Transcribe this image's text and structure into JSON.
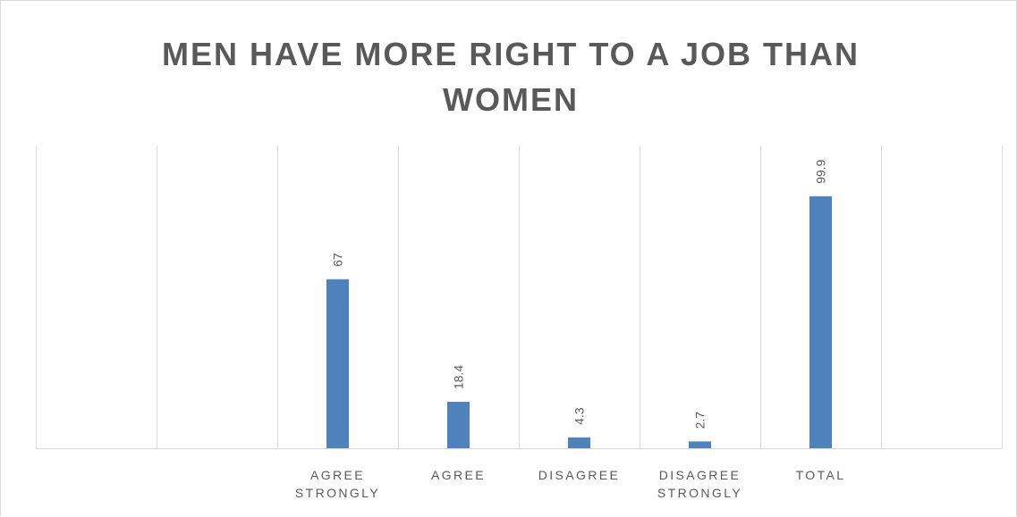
{
  "chart_data": {
    "type": "bar",
    "title": "MEN HAVE MORE RIGHT TO A JOB THAN WOMEN",
    "categories": [
      "",
      "",
      "AGREE STRONGLY",
      "AGREE",
      "DISAGREE",
      "DISAGREE STRONGLY",
      "TOTAL",
      ""
    ],
    "values": [
      null,
      null,
      67,
      18.4,
      4.3,
      2.7,
      99.9,
      null
    ],
    "data_labels": [
      "",
      "",
      "67",
      "18.4",
      "4.3",
      "2.7",
      "99.9",
      ""
    ],
    "xlabel": "",
    "ylabel": "",
    "ylim": [
      0,
      120
    ],
    "y_axis_visible": false,
    "grid": "vertical category gridlines",
    "legend": "none",
    "data_label_orientation": "rotated vertical",
    "colors": {
      "bar": "#4f81bd",
      "grid": "#d9d9d9",
      "text": "#595959"
    }
  }
}
